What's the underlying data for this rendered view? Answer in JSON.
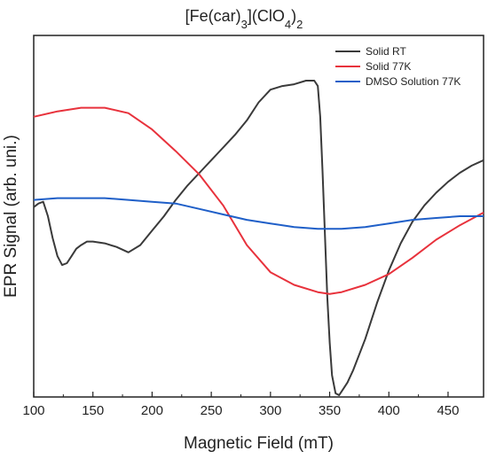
{
  "chart_data": {
    "type": "line",
    "title": {
      "parts": [
        {
          "text": "[Fe(car)",
          "shift": "none"
        },
        {
          "text": "3",
          "shift": "sub"
        },
        {
          "text": "](ClO",
          "shift": "none"
        },
        {
          "text": "4",
          "shift": "sub"
        },
        {
          "text": ")",
          "shift": "none"
        },
        {
          "text": "2",
          "shift": "sub"
        }
      ]
    },
    "xlabel": "Magnetic Field (mT)",
    "ylabel": "EPR Signal (arb. uni.)",
    "xlim": [
      100,
      480
    ],
    "ylim": [
      -1.0,
      1.0
    ],
    "x_ticks": [
      "100",
      "150",
      "200",
      "250",
      "300",
      "350",
      "400",
      "450"
    ],
    "y_ticks_shown": false,
    "legend_position": "top-right",
    "series": [
      {
        "name": "Solid RT",
        "color": "#3a3a3a",
        "x": [
          100,
          104,
          108,
          112,
          116,
          120,
          124,
          128,
          132,
          136,
          140,
          145,
          150,
          160,
          170,
          180,
          190,
          200,
          210,
          220,
          230,
          240,
          250,
          260,
          270,
          280,
          290,
          300,
          310,
          320,
          330,
          337,
          340,
          342,
          344,
          346,
          348,
          350,
          352,
          355,
          358,
          360,
          365,
          370,
          380,
          390,
          400,
          410,
          420,
          430,
          440,
          450,
          460,
          470,
          480
        ],
        "y": [
          0.05,
          0.07,
          0.08,
          0.0,
          -0.12,
          -0.22,
          -0.27,
          -0.26,
          -0.22,
          -0.18,
          -0.16,
          -0.14,
          -0.14,
          -0.15,
          -0.17,
          -0.2,
          -0.16,
          -0.08,
          0.0,
          0.09,
          0.17,
          0.24,
          0.31,
          0.38,
          0.45,
          0.53,
          0.63,
          0.7,
          0.72,
          0.73,
          0.75,
          0.75,
          0.72,
          0.55,
          0.25,
          -0.1,
          -0.45,
          -0.7,
          -0.88,
          -0.98,
          -0.99,
          -0.97,
          -0.92,
          -0.85,
          -0.68,
          -0.48,
          -0.3,
          -0.15,
          -0.03,
          0.06,
          0.13,
          0.19,
          0.24,
          0.28,
          0.31
        ]
      },
      {
        "name": "Solid 77K",
        "color": "#e8323c",
        "x": [
          100,
          120,
          140,
          160,
          180,
          200,
          220,
          240,
          260,
          280,
          300,
          320,
          340,
          350,
          360,
          380,
          400,
          420,
          440,
          460,
          480
        ],
        "y": [
          0.55,
          0.58,
          0.6,
          0.6,
          0.57,
          0.48,
          0.36,
          0.23,
          0.06,
          -0.16,
          -0.31,
          -0.38,
          -0.42,
          -0.43,
          -0.42,
          -0.38,
          -0.32,
          -0.23,
          -0.13,
          -0.05,
          0.02
        ]
      },
      {
        "name": "DMSO Solution 77K",
        "color": "#1f5fc8",
        "x": [
          100,
          120,
          140,
          160,
          180,
          200,
          220,
          240,
          260,
          280,
          300,
          320,
          340,
          350,
          360,
          380,
          400,
          420,
          440,
          460,
          480
        ],
        "y": [
          0.09,
          0.1,
          0.1,
          0.1,
          0.09,
          0.08,
          0.07,
          0.04,
          0.01,
          -0.02,
          -0.04,
          -0.06,
          -0.07,
          -0.07,
          -0.07,
          -0.06,
          -0.04,
          -0.02,
          -0.01,
          0.0,
          0.0
        ]
      }
    ]
  }
}
